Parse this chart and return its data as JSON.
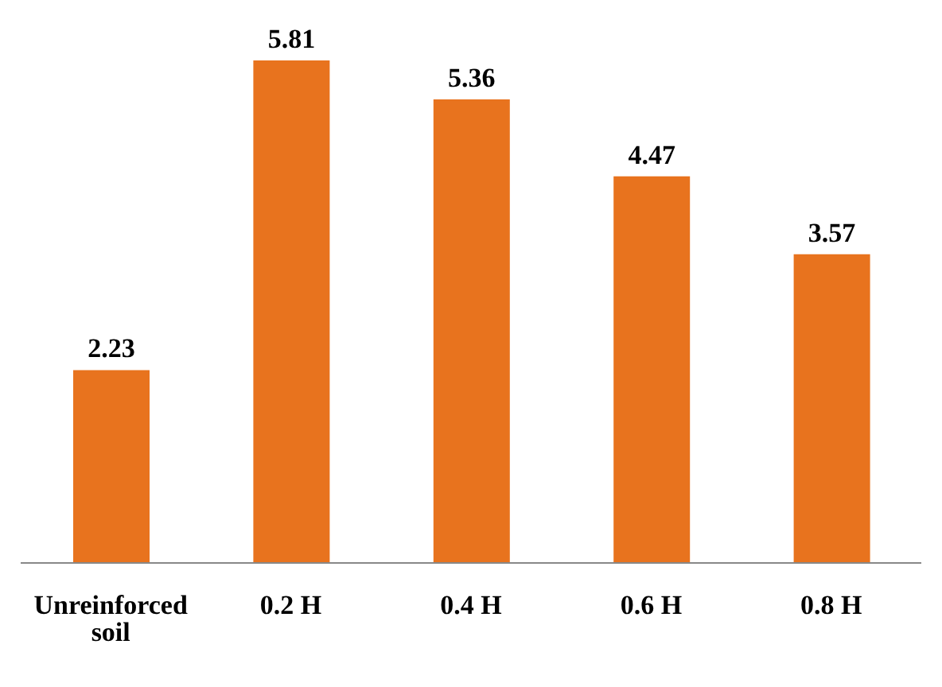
{
  "chart_data": {
    "type": "bar",
    "categories": [
      "Unreinforced soil",
      "0.2 H",
      "0.4 H",
      "0.6 H",
      "0.8 H"
    ],
    "values": [
      2.23,
      5.81,
      5.36,
      4.47,
      3.57
    ],
    "color": "#e8731e",
    "data_labels": true
  }
}
